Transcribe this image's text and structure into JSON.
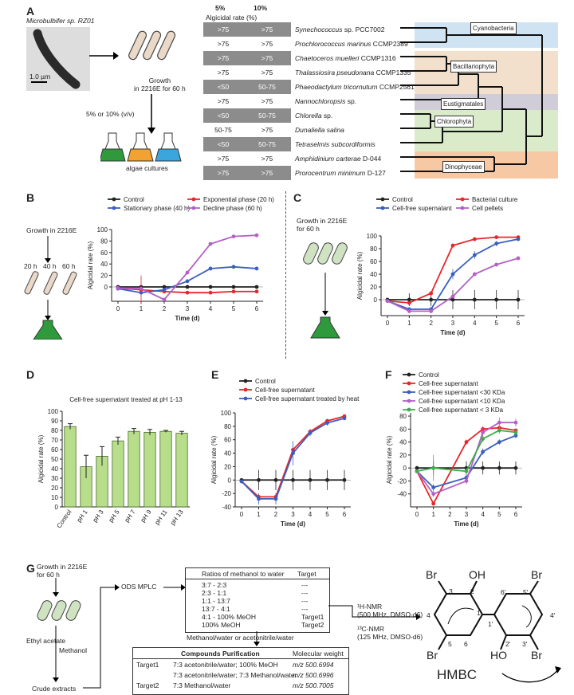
{
  "panelA": {
    "label": "A",
    "bacterium": "Microbulbifer sp. RZ01",
    "scale": "1.0 µm",
    "growth": "Growth\nin 2216E for 60 h",
    "dose": "5% or 10% (v/v)",
    "cultures": "algae cultures",
    "col1": "5%",
    "col2": "10%",
    "colcap": "Algicidal rate (%)",
    "rows": [
      {
        "a": ">75",
        "b": ">75",
        "sp": "Synechococcus",
        "rest": " sp. PCC7002",
        "dark": true
      },
      {
        "a": ">75",
        "b": ">75",
        "sp": "Prochlorococcus marinus",
        "rest": " CCMP2389",
        "dark": false
      },
      {
        "a": ">75",
        "b": ">75",
        "sp": "Chaetoceros muelleri",
        "rest": " CCMP1316",
        "dark": true
      },
      {
        "a": ">75",
        "b": ">75",
        "sp": "Thalassiosira pseudonana",
        "rest": " CCMP1335",
        "dark": false
      },
      {
        "a": "<50",
        "b": "50-75",
        "sp": "Phaeodactylum tricornutum",
        "rest": " CCMP2561",
        "dark": true
      },
      {
        "a": ">75",
        "b": ">75",
        "sp": "Nannochloropsis",
        "rest": " sp.",
        "dark": false
      },
      {
        "a": "<50",
        "b": "50-75",
        "sp": "Chlorella",
        "rest": " sp.",
        "dark": true
      },
      {
        "a": "50-75",
        "b": ">75",
        "sp": "Dunaliella salina",
        "rest": "",
        "dark": false
      },
      {
        "a": "<50",
        "b": "50-75",
        "sp": "Tetraselmis subcordiformis",
        "rest": "",
        "dark": true
      },
      {
        "a": ">75",
        "b": ">75",
        "sp": "Amphidinium carterae",
        "rest": " D-044",
        "dark": false
      },
      {
        "a": ">75",
        "b": ">75",
        "sp": "Prorocentrum minimum",
        "rest": " D-127",
        "dark": true
      }
    ],
    "groups": [
      "Cyanobacteria",
      "Bacillariophyta",
      "Eustigmatales",
      "Chlorophyta",
      "Dinophyceae"
    ],
    "groupColors": [
      "#cfe3f2",
      "#f2e0cc",
      "#d0cdd8",
      "#d9ebc9",
      "#f6c9a4"
    ]
  },
  "labels": {
    "B": "B",
    "C": "C",
    "D": "D",
    "E": "E",
    "F": "F",
    "G": "G"
  },
  "panelB": {
    "growth": "Growth in 2216E",
    "t20": "20 h",
    "t40": "40 h",
    "t60": "60 h"
  },
  "panelC": {
    "growth": "Growth in 2216E\nfor 60 h"
  },
  "panelG": {
    "growth": "Growth in 2216E\nfor 60 h",
    "ethyl": "Ethyl acetate",
    "methanol": "Methanol",
    "crude": "Crude extracts",
    "ods": "ODS MPLC",
    "ratioHead": "Ratios of methanol to water",
    "targetHead": "Target",
    "ratios": [
      [
        "3:7 - 2:3",
        "---"
      ],
      [
        "2:3 - 1:1",
        "---"
      ],
      [
        "1:1 - 13:7",
        "---"
      ],
      [
        "13:7 - 4:1",
        "---"
      ],
      [
        "4:1 - 100% MeOH",
        "Target1"
      ],
      [
        "100% MeOH",
        "Target2"
      ]
    ],
    "mw": "Methanol/water or acetonitrile/water",
    "purHead": "Compounds Purification",
    "mwHead": "Molecular weight",
    "pur": [
      [
        "Target1",
        "7:3 acetonitrile/water; 100% MeOH",
        "m/z 500.6994"
      ],
      [
        "",
        "7:3 acetonitrile/water; 7:3 Methanol/water",
        "m/z 500.6996"
      ],
      [
        "Target2",
        "7:3 Methanol/water",
        "m/z 500.7005"
      ]
    ],
    "nmr1": "¹H-NMR\n(500 MHz, DMSO-d6)",
    "nmr2": "¹³C-NMR\n(125 MHz, DMSO-d6)",
    "hmbc": "HMBC",
    "atoms": {
      "br": "Br",
      "oh": "OH",
      "ho": "HO",
      "n1": "1",
      "n2": "2",
      "n3": "3",
      "n4": "4",
      "n5": "5",
      "n6": "6",
      "n1p": "1'",
      "n2p": "2'",
      "n3p": "3'",
      "n4p": "4'",
      "n5p": "5'",
      "n6p": "6'"
    }
  },
  "chart_data": [
    {
      "id": "B",
      "type": "line",
      "title": "",
      "xlabel": "Time (d)",
      "ylabel": "Algicidal rate (%)",
      "x": [
        0,
        1,
        2,
        3,
        4,
        5,
        6
      ],
      "ylim": [
        -25,
        100
      ],
      "yticks": [
        0,
        20,
        40,
        60,
        80,
        100
      ],
      "series": [
        {
          "name": "Control",
          "color": "#222222",
          "values": [
            0,
            0,
            0,
            0,
            0,
            0,
            0
          ],
          "err": [
            2,
            2,
            2,
            2,
            2,
            2,
            2
          ]
        },
        {
          "name": "Exponential phase (20 h)",
          "color": "#e8262b",
          "values": [
            -2,
            -5,
            -8,
            -10,
            -10,
            -8,
            -8
          ],
          "err": [
            3,
            25,
            3,
            3,
            3,
            3,
            3
          ]
        },
        {
          "name": "Stationary phase (40 h)",
          "color": "#3a5fbf",
          "values": [
            -3,
            -10,
            -5,
            10,
            32,
            35,
            32
          ],
          "err": [
            2,
            3,
            3,
            3,
            3,
            3,
            3
          ]
        },
        {
          "name": "Decline phase (60 h)",
          "color": "#b461c7",
          "values": [
            -2,
            -3,
            -22,
            25,
            75,
            88,
            90
          ],
          "err": [
            2,
            2,
            2,
            3,
            3,
            2,
            2
          ]
        }
      ]
    },
    {
      "id": "C",
      "type": "line",
      "title": "",
      "xlabel": "Time (d)",
      "ylabel": "Algicidal rate (%)",
      "x": [
        0,
        1,
        2,
        3,
        4,
        5,
        6
      ],
      "ylim": [
        -25,
        100
      ],
      "yticks": [
        0,
        20,
        40,
        60,
        80,
        100
      ],
      "series": [
        {
          "name": "Control",
          "color": "#222222",
          "values": [
            0,
            0,
            0,
            0,
            0,
            0,
            0
          ],
          "err": [
            3,
            10,
            10,
            15,
            15,
            15,
            15
          ]
        },
        {
          "name": "Bacterial culture",
          "color": "#e8262b",
          "values": [
            -2,
            -5,
            10,
            85,
            95,
            98,
            98
          ],
          "err": [
            2,
            2,
            3,
            3,
            3,
            2,
            2
          ]
        },
        {
          "name": "Cell-free supernatant",
          "color": "#3a5fbf",
          "values": [
            -2,
            -15,
            -15,
            40,
            70,
            88,
            95
          ],
          "err": [
            2,
            3,
            3,
            8,
            6,
            4,
            3
          ]
        },
        {
          "name": "Cell pellets",
          "color": "#b461c7",
          "values": [
            -2,
            -18,
            -18,
            5,
            40,
            55,
            65
          ],
          "err": [
            2,
            3,
            3,
            3,
            3,
            3,
            3
          ]
        }
      ]
    },
    {
      "id": "D",
      "type": "bar",
      "title": "Cell-free supernatant treated at pH 1-13",
      "ylabel": "Algicidal rate (%)",
      "categories": [
        "Control",
        "pH 1",
        "pH 3",
        "pH 5",
        "pH 7",
        "pH 9",
        "pH 11",
        "pH 13"
      ],
      "values": [
        84,
        42,
        53,
        69,
        79,
        78,
        79,
        77
      ],
      "err": [
        3,
        12,
        10,
        4,
        3,
        3,
        1,
        2
      ],
      "ylim": [
        0,
        100
      ],
      "yticks": [
        0,
        10,
        20,
        30,
        40,
        50,
        60,
        70,
        80,
        90,
        100
      ],
      "color": "#b8de8c"
    },
    {
      "id": "E",
      "type": "line",
      "title": "",
      "xlabel": "Time (d)",
      "ylabel": "Algicidal rate (%)",
      "x": [
        0,
        1,
        2,
        3,
        4,
        5,
        6
      ],
      "ylim": [
        -40,
        100
      ],
      "yticks": [
        -40,
        -20,
        0,
        20,
        40,
        60,
        80,
        100
      ],
      "series": [
        {
          "name": "Control",
          "color": "#222222",
          "values": [
            0,
            0,
            0,
            0,
            0,
            0,
            0
          ],
          "err": [
            2,
            15,
            15,
            15,
            15,
            15,
            15
          ]
        },
        {
          "name": "Cell-free supernatant",
          "color": "#e8262b",
          "values": [
            -2,
            -25,
            -25,
            45,
            72,
            88,
            95
          ],
          "err": [
            2,
            5,
            5,
            5,
            4,
            3,
            3
          ]
        },
        {
          "name": "Cell-free supernatant treated by heat",
          "color": "#3a5fbf",
          "values": [
            -2,
            -28,
            -28,
            40,
            70,
            85,
            92
          ],
          "err": [
            2,
            8,
            8,
            18,
            5,
            4,
            3
          ]
        }
      ]
    },
    {
      "id": "F",
      "type": "line",
      "title": "",
      "xlabel": "Time (d)",
      "ylabel": "Algicidal rate (%)",
      "x": [
        0,
        1,
        3,
        4,
        5,
        6
      ],
      "ylim": [
        -60,
        85
      ],
      "yticks": [
        -40,
        -20,
        0,
        20,
        40,
        60,
        80
      ],
      "series": [
        {
          "name": "Control",
          "color": "#222222",
          "values": [
            0,
            0,
            0,
            0,
            0,
            0
          ],
          "err": [
            2,
            10,
            10,
            10,
            10,
            10
          ]
        },
        {
          "name": "Cell-free supernatant",
          "color": "#e8262b",
          "values": [
            -5,
            -55,
            40,
            60,
            62,
            58
          ],
          "err": [
            2,
            3,
            4,
            4,
            3,
            3
          ]
        },
        {
          "name": "Cell-free supernatant <30 KDa",
          "color": "#3a5fbf",
          "values": [
            -5,
            -30,
            -15,
            25,
            40,
            50
          ],
          "err": [
            2,
            5,
            5,
            5,
            4,
            4
          ]
        },
        {
          "name": "Cell-free supernatant <10 KDa",
          "color": "#b461c7",
          "values": [
            -5,
            -40,
            -20,
            55,
            70,
            70
          ],
          "err": [
            2,
            5,
            5,
            6,
            8,
            6
          ]
        },
        {
          "name": "Cell-free supernatant < 3 KDa",
          "color": "#3fae4a",
          "values": [
            -5,
            0,
            -5,
            45,
            58,
            55
          ],
          "err": [
            2,
            20,
            5,
            5,
            5,
            5
          ]
        }
      ]
    }
  ]
}
